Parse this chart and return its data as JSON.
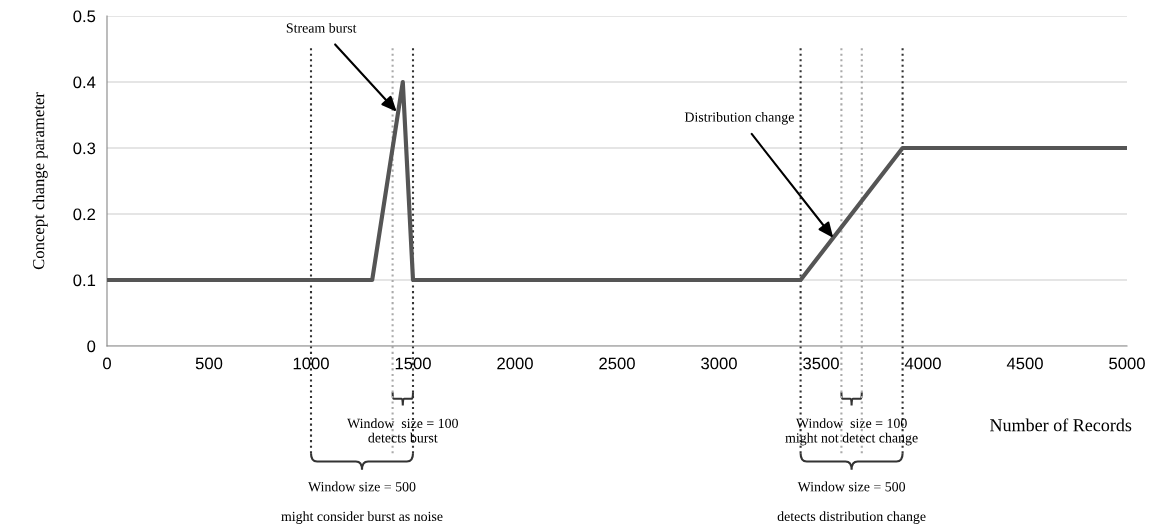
{
  "chart_data": {
    "type": "line",
    "xlabel": "Number of Records",
    "ylabel": "Concept change parameter",
    "x": [
      0,
      1300,
      1450,
      1500,
      3400,
      3900,
      5000
    ],
    "series": [
      {
        "color": "#555555",
        "values": [
          0.1,
          0.1,
          0.4,
          0.1,
          0.1,
          0.3,
          0.3
        ]
      }
    ],
    "xlim": [
      0,
      5000
    ],
    "xticks": [
      0,
      500,
      1000,
      1500,
      2000,
      2500,
      3000,
      3500,
      4000,
      4500,
      5000
    ],
    "ylim": [
      0,
      0.5
    ],
    "yticks": [
      0,
      0.1,
      0.2,
      0.3,
      0.4,
      0.5
    ],
    "grid": "y",
    "marker": "none",
    "line_style": "solid",
    "ref_lines": [
      {
        "axis": "x",
        "value": 1000,
        "color": "#333333",
        "line_style": "dotted"
      },
      {
        "axis": "x",
        "value": 1400,
        "color": "#aaaaaa",
        "line_style": "dotted"
      },
      {
        "axis": "x",
        "value": 1500,
        "color": "#333333",
        "line_style": "dotted"
      },
      {
        "axis": "x",
        "value": 3400,
        "color": "#333333",
        "line_style": "dotted"
      },
      {
        "axis": "x",
        "value": 3600,
        "color": "#aaaaaa",
        "line_style": "dotted"
      },
      {
        "axis": "x",
        "value": 3700,
        "color": "#aaaaaa",
        "line_style": "dotted"
      },
      {
        "axis": "x",
        "value": 3900,
        "color": "#333333",
        "line_style": "dotted"
      }
    ],
    "annotations": [
      {
        "text": "Stream burst",
        "x": 1420,
        "y": 0.355
      },
      {
        "text": "Distribution change",
        "x": 3560,
        "y": 0.164
      },
      "Window  size = 100\ndetects burst",
      "Window size = 500",
      "might consider burst as noise",
      "Window  size = 100\nmight not detect change",
      "Window size = 500",
      "detects distribution change"
    ]
  }
}
